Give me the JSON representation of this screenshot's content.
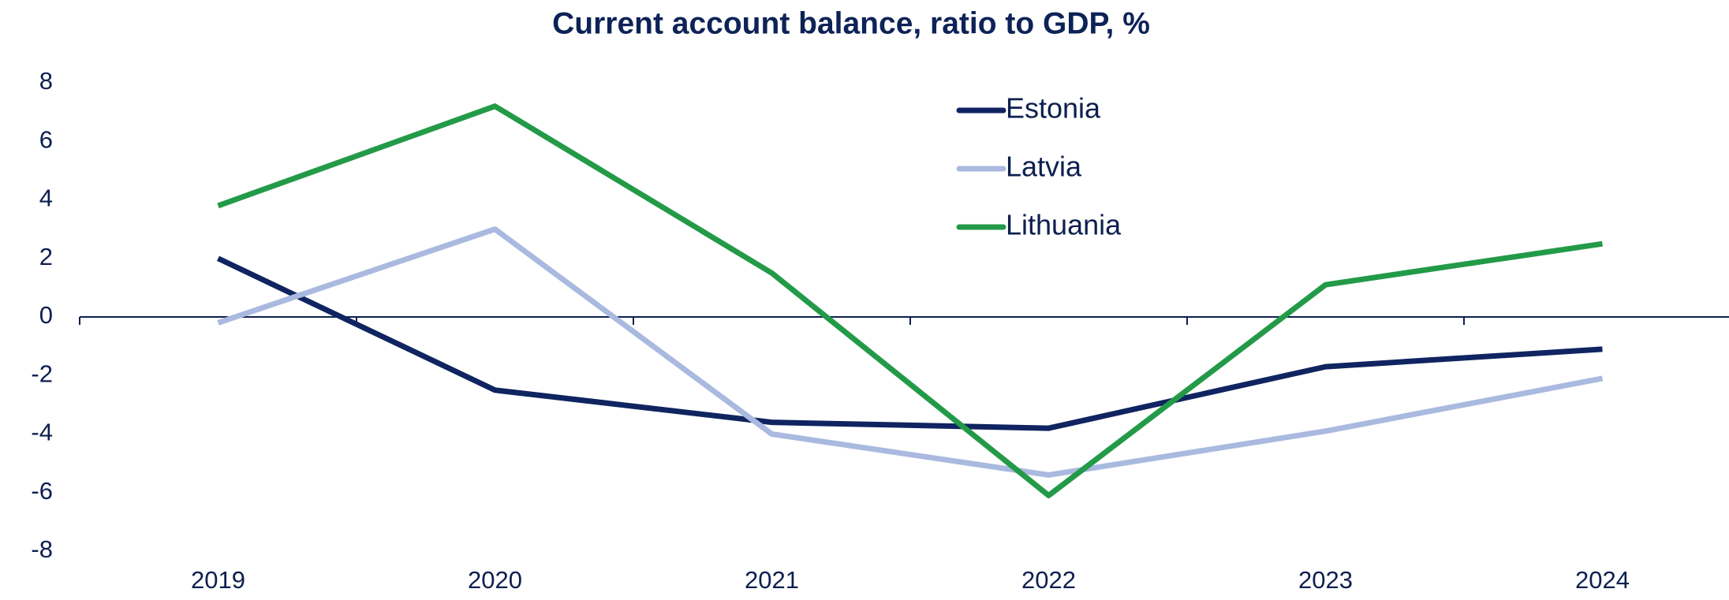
{
  "chart_data": {
    "type": "line",
    "title": "Current account balance, ratio to GDP, %",
    "categories": [
      "2019",
      "2020",
      "2021",
      "2022",
      "2023",
      "2024"
    ],
    "series": [
      {
        "name": "Estonia",
        "color": "#0f2460",
        "values": [
          2.0,
          -2.5,
          -3.6,
          -3.8,
          -1.7,
          -1.1
        ]
      },
      {
        "name": "Latvia",
        "color": "#a9b9df",
        "values": [
          -0.2,
          3.0,
          -4.0,
          -5.4,
          -3.9,
          -2.1
        ]
      },
      {
        "name": "Lithuania",
        "color": "#239a48",
        "values": [
          3.8,
          7.2,
          1.5,
          -6.1,
          1.1,
          2.5
        ]
      }
    ],
    "ylim": [
      -8,
      8
    ],
    "yticks": [
      -8,
      -6,
      -4,
      -2,
      0,
      2,
      4,
      6,
      8
    ],
    "grid": false
  }
}
